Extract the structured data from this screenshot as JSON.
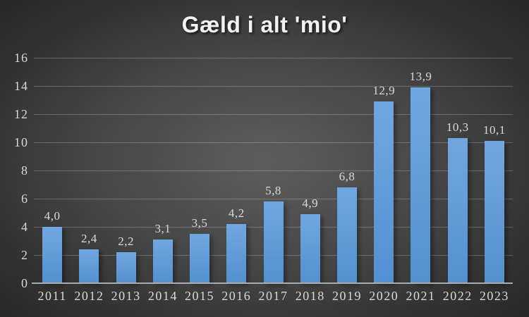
{
  "title": {
    "text": "Gæld i alt 'mio'"
  },
  "colors": {
    "background_center": "#5e5e5e",
    "background_edge": "#262626",
    "bar_top": "#71a7e0",
    "bar_bottom": "#5390d0",
    "gridline": "rgba(255,255,255,0.22)",
    "axis_line": "#ababab",
    "tick_label": "#d9d9d9",
    "title": "#f2f2f2"
  },
  "chart_data": {
    "type": "bar",
    "title": "Gæld i alt 'mio'",
    "categories": [
      "2011",
      "2012",
      "2013",
      "2014",
      "2015",
      "2016",
      "2017",
      "2018",
      "2019",
      "2020",
      "2021",
      "2022",
      "2023"
    ],
    "values": [
      4.0,
      2.4,
      2.2,
      3.1,
      3.5,
      4.2,
      5.8,
      4.9,
      6.8,
      12.9,
      13.9,
      10.3,
      10.1
    ],
    "value_labels": [
      "4,0",
      "2,4",
      "2,2",
      "3,1",
      "3,5",
      "4,2",
      "5,8",
      "4,9",
      "6,8",
      "12,9",
      "13,9",
      "10,3",
      "10,1"
    ],
    "xlabel": "",
    "ylabel": "",
    "ylim": [
      0,
      16
    ],
    "yticks": [
      0,
      2,
      4,
      6,
      8,
      10,
      12,
      14,
      16
    ],
    "grid": true,
    "legend": false,
    "decimal_separator": ","
  }
}
